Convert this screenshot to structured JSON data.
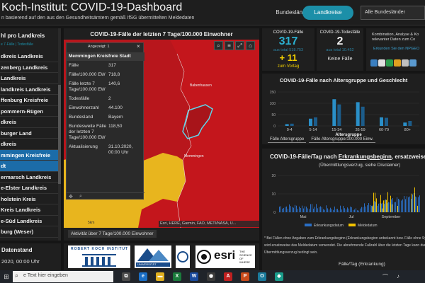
{
  "header": {
    "title": "Koch-Institut: COVID-19-Dashboard",
    "subtitle": "n basierend auf den aus den Gesundheitsämtern gemäß IfSG übermittelten Meldedaten",
    "nav_bundeslaender": "Bundesländer",
    "nav_landkreise": "Landkreise",
    "select_value": "Alle Bundesländer"
  },
  "left_panel": {
    "title": "hl pro Landkreis",
    "tabs": "e 7-Fälle | Todesfälle",
    "items": [
      "dkreis Landkreis",
      "zenberg Landkreis",
      "Landkreis",
      "landkreis Landkreis",
      "ffenburg Kreisfreie",
      "pommern-Rügen",
      "dkreis",
      "burger Land",
      "dkreis",
      "mmingen Kreisfreie",
      "dt",
      "ermarsch Landkreis",
      "e-Elster Landkreis",
      "holstein Kreis",
      "Kreis Landkreis",
      "e-Süd Landkreis",
      "burg (Weser)",
      "dkreis"
    ]
  },
  "left_bottom": {
    "title": "Datenstand",
    "value": "2020, 00:00 Uhr"
  },
  "map": {
    "title": "COVID-19-Fälle der letzten 7 Tage/100.000 Einwohner",
    "attribution": "Esri, HERE, Garmin, FAO, METI/NASA, U...",
    "scale": "5km",
    "tab": "Aktivität über 7 Tage/100.000 Einwohner",
    "town_babenhausen": "Babenhausen",
    "town_memmingen": "Memmingen"
  },
  "popup": {
    "count": "Angezeigt: 1",
    "heading": "Memmingen Kreisfreie Stadt",
    "rows": [
      {
        "k": "Fälle",
        "v": "317"
      },
      {
        "k": "Fälle/100.000 EW",
        "v": "718,8"
      },
      {
        "k": "Fälle letzte 7 Tage/100.000 EW",
        "v": "140,6"
      },
      {
        "k": "Todesfälle",
        "v": "2"
      },
      {
        "k": "Einwohnerzahl",
        "v": "44.100"
      },
      {
        "k": "Bundesland",
        "v": "Bayern"
      },
      {
        "k": "Bundesweite Fälle der letzten 7 Tage/100.000 EW",
        "v": "118,50"
      },
      {
        "k": "Aktualisierung",
        "v": "31.10.2020, 00:00 Uhr"
      }
    ]
  },
  "kpi": {
    "cases_label": "COVID-19-Fälle",
    "cases_value": "317",
    "cases_total": "aus total 518.753",
    "cases_delta": "+ 11",
    "cases_delta_note": "zum Vortag",
    "deaths_label": "COVID-19-Todesfälle",
    "deaths_value": "2",
    "deaths_total": "aus total 10.452",
    "deaths_note": "Keine Fälle"
  },
  "info_box": {
    "line1": "Kombination, Analyse & Ko",
    "line2": "relevanter Daten zum Co",
    "link": "Erkunden Sie den NPGEO"
  },
  "age_chart": {
    "title": "COVID-19-Fälle nach Altersgruppe und Geschlecht",
    "xlabel": "Altersgruppe",
    "tab1": "Fälle Altersgruppe",
    "tab2": "Fälle Altersgruppe/100.000 Einw.",
    "axis_ticks": [
      "150",
      "100",
      "50",
      "0"
    ]
  },
  "daily_chart": {
    "title_pre": "COVID-19-Fälle/Tag nach ",
    "title_u": "Erkrankungsbeginn",
    "title_post": ", ersatzweise Me",
    "subtitle": "(Übermittlungsverzug, siehe Disclaimer)",
    "axis_ticks": [
      "20",
      "10",
      "0"
    ],
    "month_labels": [
      "Mai",
      "Jul",
      "September"
    ],
    "legend_a": "Erkrankungsdatum",
    "legend_b": "Meldedatum",
    "foot1": "* Bei Fällen ohne Angaben zum Erkrankungsbeginn (Erkrankungsbeginn unbekannt bzw. Fälle ohne Symp",
    "foot2": "wird ersatzweise das Meldedatum verwendet. Die abnehmende Fallzahl über die letzten Tage kann durch den",
    "foot3": "Übermittlungsverzug bedingt sein.",
    "tab": "Fälle/Tag (Erkrankung)"
  },
  "logos": {
    "rki": "ROBERT KOCH INSTITUT",
    "esri": "esri",
    "esri_tag": "THE SCIENCE OF WHERE",
    "univ": "UNIVERSITÄT"
  },
  "taskbar": {
    "search_placeholder": "Hier eingeben zum Suchen",
    "search_text": "e Text hier eingeben"
  },
  "colors": {
    "accent": "#1c8fa8",
    "map_dark_red": "#8c0d12",
    "map_red": "#c4161c",
    "map_yellow": "#e8b51e",
    "bar_blue": "#1c6ca8",
    "bar_yellow": "#f2c200"
  },
  "chart_data": [
    {
      "type": "bar",
      "title": "COVID-19-Fälle nach Altersgruppe und Geschlecht",
      "xlabel": "Altersgruppe",
      "categories": [
        "0-4",
        "5-14",
        "15-34",
        "35-59",
        "60-79",
        "80+"
      ],
      "series": [
        {
          "values": [
            8,
            32,
            118,
            105,
            38,
            15
          ]
        },
        {
          "values": [
            10,
            38,
            95,
            85,
            36,
            22
          ]
        }
      ],
      "ylim": [
        0,
        150
      ]
    }
  ]
}
